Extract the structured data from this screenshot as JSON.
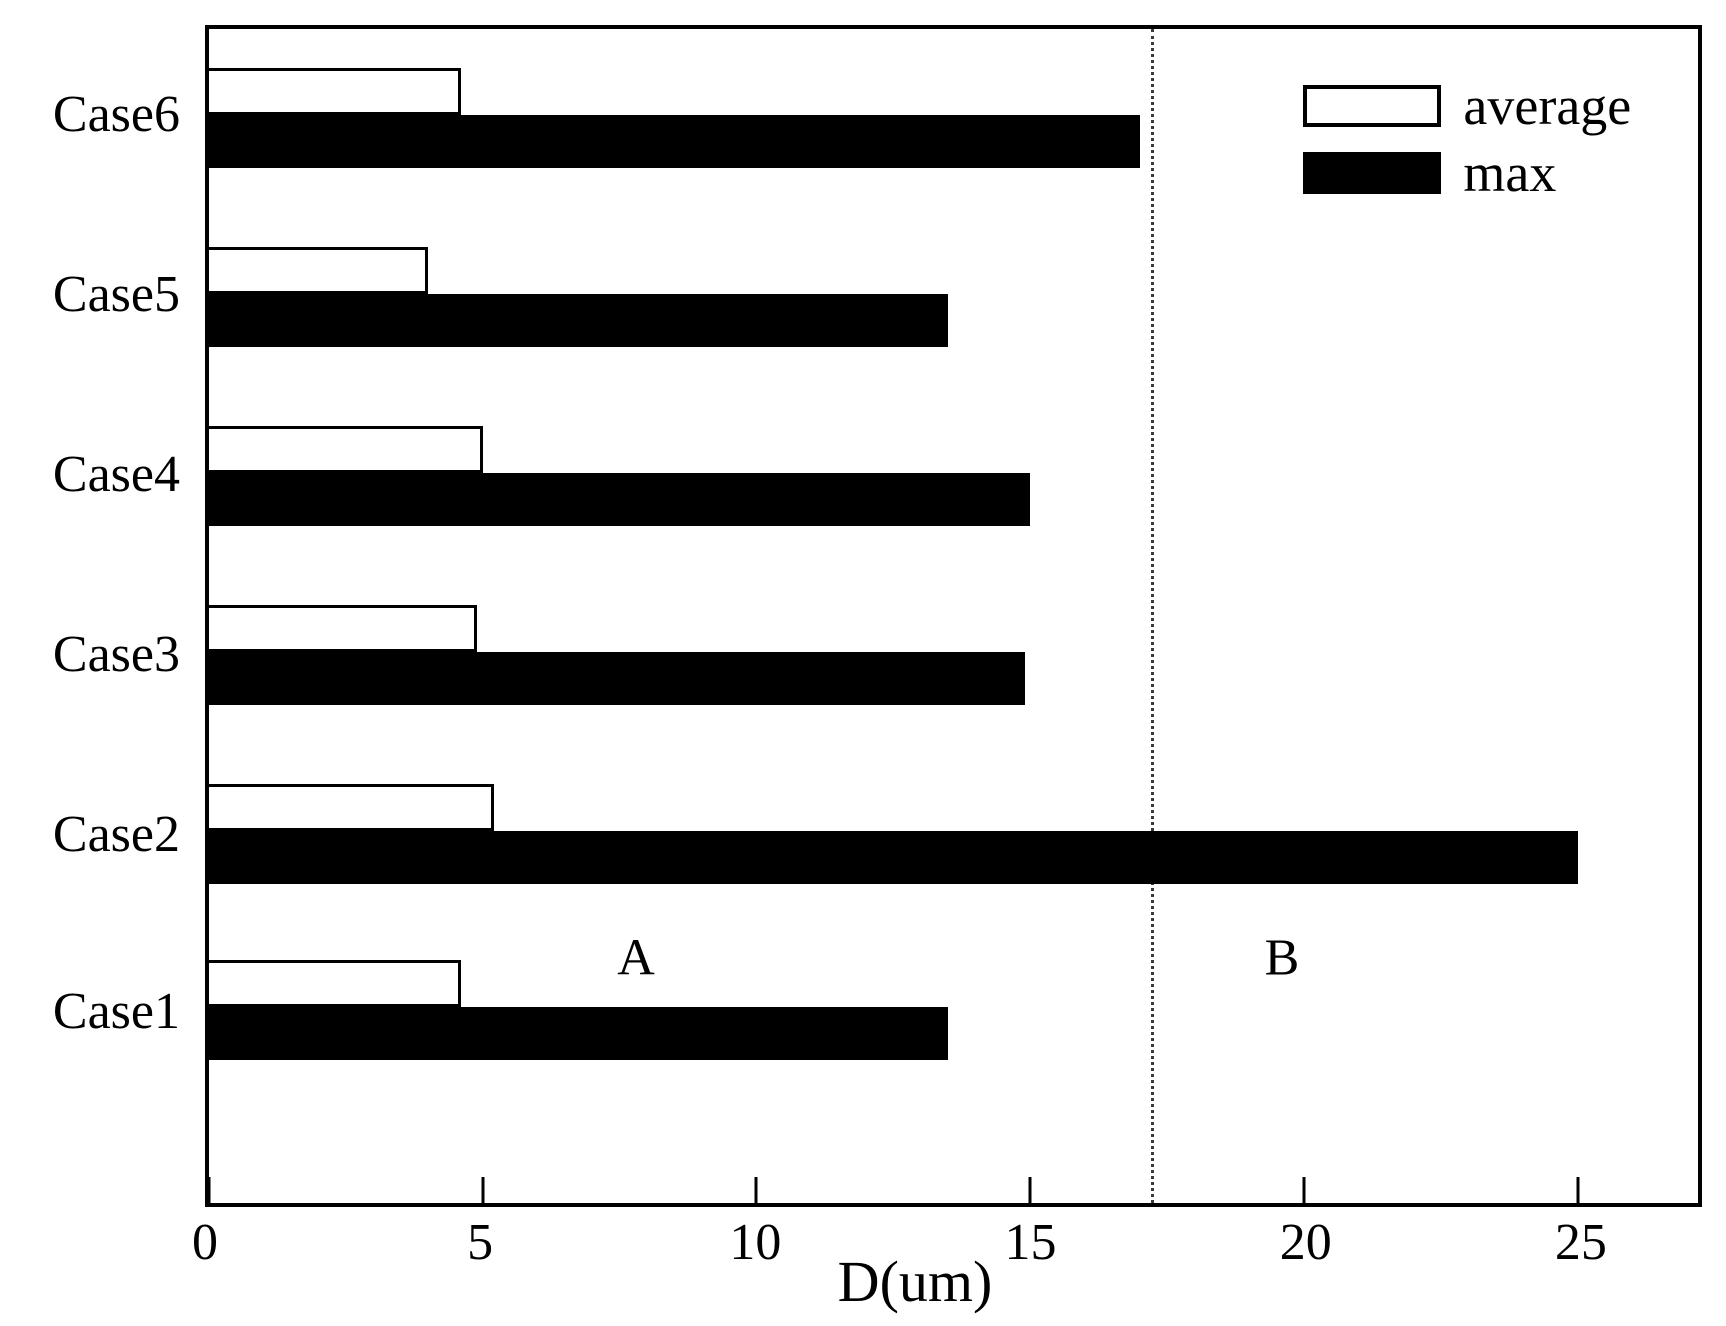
{
  "figure": {
    "legend": {
      "average_label": "average",
      "max_label": "max"
    }
  },
  "chart_data": {
    "type": "bar",
    "orientation": "horizontal",
    "title": "",
    "xlabel": "D(um)",
    "ylabel": "",
    "categories": [
      "Case1",
      "Case2",
      "Case3",
      "Case4",
      "Case5",
      "Case6"
    ],
    "series": [
      {
        "name": "average",
        "fill": "#ffffff",
        "values": [
          4.6,
          5.2,
          4.9,
          5.0,
          4.0,
          4.6
        ]
      },
      {
        "name": "max",
        "fill": "#000000",
        "values": [
          13.5,
          25.0,
          14.9,
          15.0,
          13.5,
          17.0
        ]
      }
    ],
    "xlim": [
      0,
      27.2
    ],
    "xticks": [
      0,
      5,
      10,
      15,
      20,
      25
    ],
    "reference_line_x": 17.2,
    "reference_line_style": "dotted",
    "annotations": [
      {
        "text": "A",
        "x": 7.8
      },
      {
        "text": "B",
        "x": 19.6
      }
    ],
    "legend_position": "upper right",
    "grid": false
  }
}
